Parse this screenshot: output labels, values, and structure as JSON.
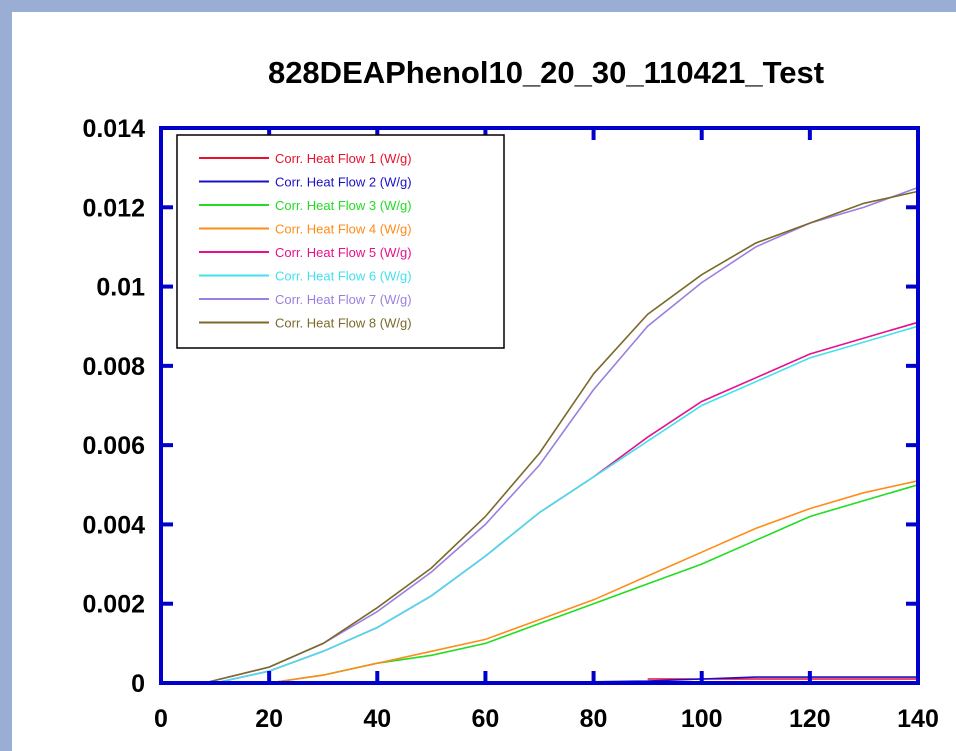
{
  "chart_data": {
    "type": "line",
    "title": "828DEAPhenol10_20_30_110421_Test",
    "xlabel": "",
    "ylabel": "",
    "xlim": [
      0,
      140
    ],
    "ylim": [
      0,
      0.014
    ],
    "x_ticks": [
      0,
      20,
      40,
      60,
      80,
      100,
      120,
      140
    ],
    "y_ticks": [
      0,
      0.002,
      0.004,
      0.006,
      0.008,
      0.01,
      0.012,
      0.014
    ],
    "x_tick_labels": [
      "0",
      "20",
      "40",
      "60",
      "80",
      "100",
      "120",
      "140"
    ],
    "y_tick_labels": [
      "0",
      "0.002",
      "0.004",
      "0.006",
      "0.008",
      "0.01",
      "0.012",
      "0.014"
    ],
    "grid": false,
    "legend_position": "top-left",
    "axis_color": "#0000cc",
    "series": [
      {
        "name": "Corr. Heat Flow 1 (W/g)",
        "color": "#e8102a",
        "x": [
          90,
          100,
          110,
          120,
          130,
          140
        ],
        "y": [
          0.0001,
          0.0001,
          0.0001,
          0.0001,
          0.0001,
          0.0001
        ]
      },
      {
        "name": "Corr. Heat Flow 2 (W/g)",
        "color": "#1a10c8",
        "x": [
          70,
          80,
          90,
          100,
          110,
          120,
          130,
          140
        ],
        "y": [
          0.0,
          3e-05,
          5e-05,
          0.0001,
          0.00015,
          0.00015,
          0.00015,
          0.00015
        ]
      },
      {
        "name": "Corr. Heat Flow 3 (W/g)",
        "color": "#22dd22",
        "x": [
          20,
          30,
          40,
          50,
          60,
          70,
          80,
          90,
          100,
          110,
          120,
          130,
          140
        ],
        "y": [
          0.0,
          0.0002,
          0.0005,
          0.0007,
          0.001,
          0.0015,
          0.002,
          0.0025,
          0.003,
          0.0036,
          0.0042,
          0.0046,
          0.005
        ]
      },
      {
        "name": "Corr. Heat Flow 4 (W/g)",
        "color": "#ff8c1a",
        "x": [
          20,
          30,
          40,
          50,
          60,
          70,
          80,
          90,
          100,
          110,
          120,
          130,
          140
        ],
        "y": [
          0.0,
          0.0002,
          0.0005,
          0.0008,
          0.0011,
          0.0016,
          0.0021,
          0.0027,
          0.0033,
          0.0039,
          0.0044,
          0.0048,
          0.0051
        ]
      },
      {
        "name": "Corr. Heat Flow 5 (W/g)",
        "color": "#e8108c",
        "x": [
          10,
          20,
          30,
          40,
          50,
          60,
          70,
          80,
          90,
          100,
          110,
          120,
          130,
          140
        ],
        "y": [
          0.0,
          0.0003,
          0.0008,
          0.0014,
          0.0022,
          0.0032,
          0.0043,
          0.0052,
          0.0062,
          0.0071,
          0.0077,
          0.0083,
          0.0087,
          0.0091
        ]
      },
      {
        "name": "Corr. Heat Flow 6 (W/g)",
        "color": "#44e0ee",
        "x": [
          10,
          20,
          30,
          40,
          50,
          60,
          70,
          80,
          90,
          100,
          110,
          120,
          130,
          140
        ],
        "y": [
          0.0,
          0.0003,
          0.0008,
          0.0014,
          0.0022,
          0.0032,
          0.0043,
          0.0052,
          0.0061,
          0.007,
          0.0076,
          0.0082,
          0.0086,
          0.009
        ]
      },
      {
        "name": "Corr. Heat Flow 7 (W/g)",
        "color": "#9b7fe0",
        "x": [
          8,
          20,
          30,
          40,
          50,
          60,
          70,
          80,
          90,
          100,
          110,
          120,
          130,
          140
        ],
        "y": [
          0.0,
          0.0004,
          0.001,
          0.0018,
          0.0028,
          0.004,
          0.0055,
          0.0074,
          0.009,
          0.0101,
          0.011,
          0.0116,
          0.012,
          0.0125
        ]
      },
      {
        "name": "Corr. Heat Flow 8 (W/g)",
        "color": "#7a6a2a",
        "x": [
          8,
          20,
          30,
          40,
          50,
          60,
          70,
          80,
          90,
          100,
          110,
          120,
          130,
          140
        ],
        "y": [
          0.0,
          0.0004,
          0.001,
          0.0019,
          0.0029,
          0.0042,
          0.0058,
          0.0078,
          0.0093,
          0.0103,
          0.0111,
          0.0116,
          0.0121,
          0.0124
        ]
      }
    ]
  }
}
